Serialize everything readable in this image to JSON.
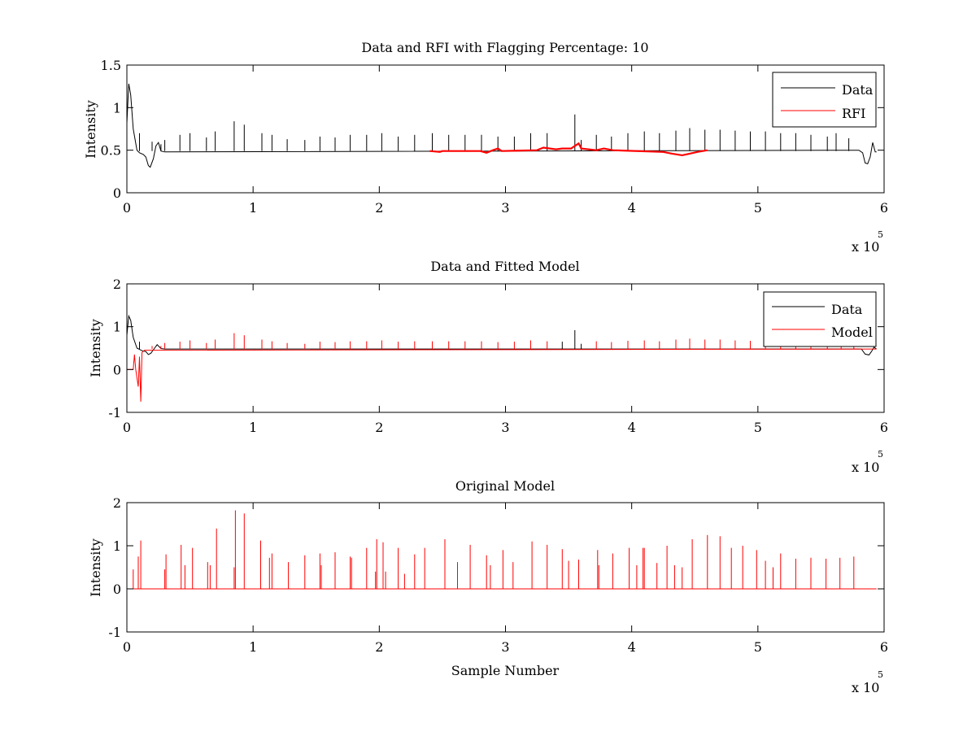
{
  "chart_data": [
    {
      "type": "line",
      "title": "Data and RFI with Flagging Percentage: 10",
      "xlabel": "",
      "ylabel": "Intensity",
      "xlim": [
        0,
        600000
      ],
      "ylim": [
        0,
        1.5
      ],
      "x_ticks": [
        "0",
        "1",
        "2",
        "3",
        "4",
        "5",
        "6"
      ],
      "y_ticks": [
        "0",
        "0.5",
        "1",
        "1.5"
      ],
      "x_exponent_label": "x 10",
      "x_exponent_power": "5",
      "legend_position": "top-right",
      "baseline": 0.49,
      "series": [
        {
          "name": "Data",
          "color": "#000000",
          "points": [
            [
              0,
              0.82
            ],
            [
              1500,
              1.28
            ],
            [
              3000,
              1.15
            ],
            [
              5000,
              0.75
            ],
            [
              8000,
              0.5
            ],
            [
              10000,
              0.47
            ],
            [
              13000,
              0.45
            ],
            [
              15000,
              0.42
            ],
            [
              17000,
              0.32
            ],
            [
              18500,
              0.3
            ],
            [
              21000,
              0.4
            ],
            [
              23000,
              0.55
            ],
            [
              25000,
              0.59
            ],
            [
              27000,
              0.49
            ],
            [
              30000,
              0.48
            ],
            [
              580000,
              0.5
            ],
            [
              583000,
              0.47
            ],
            [
              585000,
              0.35
            ],
            [
              587000,
              0.34
            ],
            [
              589000,
              0.42
            ],
            [
              591000,
              0.59
            ],
            [
              593000,
              0.48
            ],
            [
              594000,
              0.48
            ]
          ],
          "spikes": [
            [
              10000,
              0.7
            ],
            [
              20000,
              0.6
            ],
            [
              27000,
              0.57
            ],
            [
              30000,
              0.62
            ],
            [
              42000,
              0.68
            ],
            [
              50000,
              0.7
            ],
            [
              63000,
              0.65
            ],
            [
              70000,
              0.72
            ],
            [
              85000,
              0.84
            ],
            [
              93000,
              0.8
            ],
            [
              107000,
              0.7
            ],
            [
              115000,
              0.68
            ],
            [
              127000,
              0.63
            ],
            [
              141000,
              0.62
            ],
            [
              153000,
              0.66
            ],
            [
              165000,
              0.65
            ],
            [
              177000,
              0.68
            ],
            [
              190000,
              0.68
            ],
            [
              202000,
              0.7
            ],
            [
              215000,
              0.66
            ],
            [
              228000,
              0.68
            ],
            [
              242000,
              0.7
            ],
            [
              255000,
              0.68
            ],
            [
              268000,
              0.68
            ],
            [
              281000,
              0.68
            ],
            [
              294000,
              0.66
            ],
            [
              307000,
              0.66
            ],
            [
              320000,
              0.7
            ],
            [
              333000,
              0.7
            ],
            [
              355000,
              0.92
            ],
            [
              360000,
              0.62
            ],
            [
              372000,
              0.68
            ],
            [
              384000,
              0.66
            ],
            [
              397000,
              0.7
            ],
            [
              410000,
              0.72
            ],
            [
              422000,
              0.7
            ],
            [
              435000,
              0.73
            ],
            [
              446000,
              0.76
            ],
            [
              458000,
              0.74
            ],
            [
              470000,
              0.74
            ],
            [
              482000,
              0.73
            ],
            [
              494000,
              0.72
            ],
            [
              506000,
              0.72
            ],
            [
              518000,
              0.7
            ],
            [
              530000,
              0.7
            ],
            [
              542000,
              0.68
            ],
            [
              555000,
              0.66
            ],
            [
              562000,
              0.7
            ],
            [
              572000,
              0.64
            ]
          ]
        },
        {
          "name": "RFI",
          "color": "#ff0000",
          "points": [
            [
              240000,
              0.49
            ],
            [
              248000,
              0.48
            ],
            [
              250000,
              0.49
            ],
            [
              280000,
              0.49
            ],
            [
              285000,
              0.47
            ],
            [
              290000,
              0.5
            ],
            [
              294000,
              0.52
            ],
            [
              297000,
              0.49
            ],
            [
              325000,
              0.5
            ],
            [
              330000,
              0.53
            ],
            [
              340000,
              0.51
            ],
            [
              345000,
              0.52
            ],
            [
              352000,
              0.52
            ],
            [
              355000,
              0.55
            ],
            [
              358000,
              0.58
            ],
            [
              360000,
              0.52
            ],
            [
              372000,
              0.5
            ],
            [
              378000,
              0.52
            ],
            [
              385000,
              0.5
            ],
            [
              425000,
              0.48
            ],
            [
              432000,
              0.46
            ],
            [
              440000,
              0.44
            ],
            [
              446000,
              0.46
            ],
            [
              452000,
              0.48
            ],
            [
              460000,
              0.5
            ]
          ]
        }
      ]
    },
    {
      "type": "line",
      "title": "Data and Fitted Model",
      "xlabel": "",
      "ylabel": "Intensity",
      "xlim": [
        0,
        600000
      ],
      "ylim": [
        -1,
        2
      ],
      "x_ticks": [
        "0",
        "1",
        "2",
        "3",
        "4",
        "5",
        "6"
      ],
      "y_ticks": [
        "-1",
        "0",
        "1",
        "2"
      ],
      "x_exponent_label": "x 10",
      "x_exponent_power": "5",
      "legend_position": "top-right",
      "baseline": 0.48,
      "series": [
        {
          "name": "Data",
          "color": "#000000",
          "points": [
            [
              0,
              0.8
            ],
            [
              1500,
              1.25
            ],
            [
              3000,
              1.15
            ],
            [
              5000,
              0.75
            ],
            [
              8000,
              0.5
            ],
            [
              12000,
              0.44
            ],
            [
              15000,
              0.42
            ],
            [
              17000,
              0.35
            ],
            [
              19000,
              0.38
            ],
            [
              22000,
              0.5
            ],
            [
              24000,
              0.58
            ],
            [
              27000,
              0.49
            ],
            [
              30000,
              0.48
            ],
            [
              582000,
              0.48
            ],
            [
              585000,
              0.36
            ],
            [
              588000,
              0.34
            ],
            [
              590000,
              0.42
            ],
            [
              592000,
              0.52
            ],
            [
              594000,
              0.48
            ]
          ],
          "spikes": [
            [
              10000,
              0.65
            ],
            [
              355000,
              0.92
            ],
            [
              345000,
              0.65
            ],
            [
              360000,
              0.6
            ]
          ]
        },
        {
          "name": "Model",
          "color": "#ff0000",
          "points": [
            [
              0,
              0
            ],
            [
              5000,
              0
            ],
            [
              6000,
              0.35
            ],
            [
              7000,
              0
            ],
            [
              9000,
              -0.4
            ],
            [
              10000,
              0.3
            ],
            [
              11000,
              -0.75
            ],
            [
              12000,
              0.4
            ],
            [
              14000,
              0.45
            ],
            [
              594000,
              0.48
            ]
          ],
          "spikes": [
            [
              20000,
              0.55
            ],
            [
              27000,
              0.55
            ],
            [
              30000,
              0.62
            ],
            [
              42000,
              0.65
            ],
            [
              50000,
              0.68
            ],
            [
              63000,
              0.62
            ],
            [
              70000,
              0.7
            ],
            [
              85000,
              0.85
            ],
            [
              93000,
              0.8
            ],
            [
              107000,
              0.7
            ],
            [
              115000,
              0.66
            ],
            [
              127000,
              0.62
            ],
            [
              141000,
              0.6
            ],
            [
              153000,
              0.65
            ],
            [
              165000,
              0.64
            ],
            [
              177000,
              0.66
            ],
            [
              190000,
              0.66
            ],
            [
              202000,
              0.68
            ],
            [
              215000,
              0.65
            ],
            [
              228000,
              0.66
            ],
            [
              242000,
              0.66
            ],
            [
              255000,
              0.66
            ],
            [
              268000,
              0.66
            ],
            [
              281000,
              0.66
            ],
            [
              294000,
              0.64
            ],
            [
              307000,
              0.65
            ],
            [
              320000,
              0.68
            ],
            [
              333000,
              0.66
            ],
            [
              372000,
              0.66
            ],
            [
              384000,
              0.64
            ],
            [
              397000,
              0.67
            ],
            [
              410000,
              0.68
            ],
            [
              422000,
              0.66
            ],
            [
              435000,
              0.7
            ],
            [
              446000,
              0.72
            ],
            [
              458000,
              0.7
            ],
            [
              470000,
              0.7
            ],
            [
              482000,
              0.68
            ],
            [
              494000,
              0.67
            ],
            [
              506000,
              0.66
            ],
            [
              518000,
              0.64
            ],
            [
              530000,
              0.62
            ],
            [
              542000,
              0.6
            ],
            [
              555000,
              0.58
            ],
            [
              566000,
              0.55
            ],
            [
              576000,
              0.54
            ]
          ]
        }
      ]
    },
    {
      "type": "line",
      "title": "Original Model",
      "xlabel": "Sample Number",
      "ylabel": "Intensity",
      "xlim": [
        0,
        600000
      ],
      "ylim": [
        -1,
        2
      ],
      "x_ticks": [
        "0",
        "1",
        "2",
        "3",
        "4",
        "5",
        "6"
      ],
      "y_ticks": [
        "-1",
        "0",
        "1",
        "2"
      ],
      "x_exponent_label": "x 10",
      "x_exponent_power": "5",
      "legend_position": "none",
      "baseline": 0,
      "series": [
        {
          "name": "",
          "color": "#ff0000",
          "points": [
            [
              0,
              0
            ],
            [
              594000,
              0
            ]
          ],
          "spikes": [
            [
              5000,
              0.45
            ],
            [
              9000,
              0.75
            ],
            [
              11000,
              1.12
            ],
            [
              30000,
              0.45
            ],
            [
              31000,
              0.8
            ],
            [
              43000,
              1.02
            ],
            [
              46000,
              0.55
            ],
            [
              52000,
              0.95
            ],
            [
              64000,
              0.62
            ],
            [
              66000,
              0.55
            ],
            [
              71000,
              1.4
            ],
            [
              85000,
              0.5
            ],
            [
              86000,
              1.82
            ],
            [
              93000,
              1.75
            ],
            [
              106000,
              1.12
            ],
            [
              113000,
              0.72
            ],
            [
              115000,
              0.82
            ],
            [
              128000,
              0.62
            ],
            [
              141000,
              0.78
            ],
            [
              153000,
              0.82
            ],
            [
              154000,
              0.55
            ],
            [
              165000,
              0.85
            ],
            [
              177000,
              0.75
            ],
            [
              178000,
              0.72
            ],
            [
              190000,
              0.95
            ],
            [
              197000,
              0.4
            ],
            [
              198000,
              1.15
            ],
            [
              203000,
              1.08
            ],
            [
              205000,
              0.4
            ],
            [
              215000,
              0.95
            ],
            [
              220000,
              0.35
            ],
            [
              228000,
              0.8
            ],
            [
              236000,
              0.95
            ],
            [
              252000,
              1.15
            ],
            [
              262000,
              0.62
            ],
            [
              272000,
              1.02
            ],
            [
              285000,
              0.78
            ],
            [
              288000,
              0.55
            ],
            [
              298000,
              0.9
            ],
            [
              306000,
              0.62
            ],
            [
              321000,
              1.1
            ],
            [
              333000,
              1.02
            ],
            [
              345000,
              0.92
            ],
            [
              350000,
              0.65
            ],
            [
              358000,
              0.68
            ],
            [
              373000,
              0.9
            ],
            [
              374000,
              0.55
            ],
            [
              385000,
              0.82
            ],
            [
              398000,
              0.95
            ],
            [
              404000,
              0.55
            ],
            [
              409000,
              0.95
            ],
            [
              410000,
              0.95
            ],
            [
              420000,
              0.6
            ],
            [
              428000,
              1.0
            ],
            [
              434000,
              0.55
            ],
            [
              440000,
              0.5
            ],
            [
              448000,
              1.15
            ],
            [
              460000,
              1.25
            ],
            [
              470000,
              1.22
            ],
            [
              479000,
              0.95
            ],
            [
              488000,
              1.0
            ],
            [
              499000,
              0.9
            ],
            [
              506000,
              0.65
            ],
            [
              512000,
              0.5
            ],
            [
              518000,
              0.82
            ],
            [
              530000,
              0.7
            ],
            [
              542000,
              0.72
            ],
            [
              554000,
              0.7
            ],
            [
              565000,
              0.72
            ],
            [
              576000,
              0.75
            ]
          ]
        }
      ]
    }
  ]
}
